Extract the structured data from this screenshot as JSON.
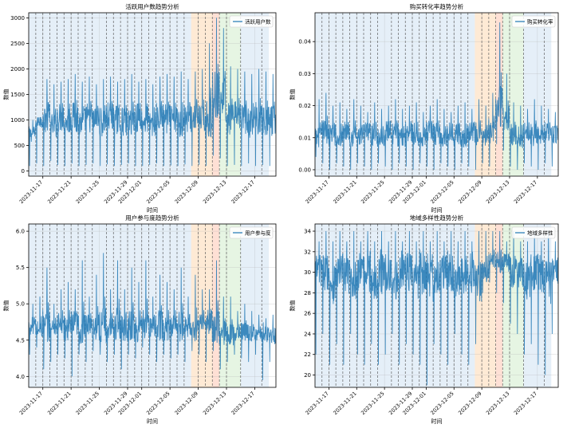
{
  "chart_data": [
    {
      "type": "line",
      "title": "活跃用户数趋势分析",
      "xlabel": "时间",
      "ylabel": "数值",
      "legend": "top-right",
      "grid": true,
      "x_range": [
        "2023-11-15",
        "2023-12-20"
      ],
      "ylim": [
        -100,
        3100
      ],
      "yticks": [
        0,
        500,
        1000,
        1500,
        2000,
        2500,
        3000
      ],
      "xticks": [
        "2023-11-17",
        "2023-11-21",
        "2023-11-25",
        "2023-11-29",
        "2023-12-01",
        "2023-12-05",
        "2023-12-09",
        "2023-12-13",
        "2023-12-17"
      ],
      "series": [
        {
          "name": "活跃用户数",
          "color": "#1f77b4",
          "x": [
            "2023-11-15",
            "2023-11-16",
            "2023-11-17",
            "2023-11-18",
            "2023-11-19",
            "2023-11-20",
            "2023-11-21",
            "2023-11-22",
            "2023-11-23",
            "2023-11-24",
            "2023-11-25",
            "2023-11-26",
            "2023-11-27",
            "2023-11-28",
            "2023-11-29",
            "2023-11-30",
            "2023-12-01",
            "2023-12-02",
            "2023-12-03",
            "2023-12-04",
            "2023-12-05",
            "2023-12-06",
            "2023-12-07",
            "2023-12-08",
            "2023-12-09",
            "2023-12-10",
            "2023-12-11",
            "2023-12-12",
            "2023-12-13",
            "2023-12-14",
            "2023-12-15",
            "2023-12-16",
            "2023-12-17",
            "2023-12-18",
            "2023-12-19"
          ],
          "values": [
            720,
            1000,
            1050,
            900,
            1050,
            1000,
            1050,
            950,
            1050,
            1000,
            950,
            1050,
            1000,
            950,
            1000,
            1050,
            1000,
            950,
            1050,
            1000,
            1000,
            950,
            1050,
            1050,
            1000,
            1050,
            1500,
            1400,
            1000,
            1050,
            1000,
            950,
            1050,
            1000,
            1000
          ],
          "daily_min": [
            100,
            150,
            100,
            200,
            120,
            100,
            150,
            100,
            120,
            150,
            100,
            130,
            100,
            120,
            150,
            100,
            100,
            120,
            150,
            100,
            110,
            100,
            130,
            100,
            120,
            100,
            300,
            250,
            100,
            120,
            100,
            150,
            100,
            120,
            100
          ],
          "daily_max": [
            1000,
            1050,
            1800,
            1700,
            1750,
            1800,
            1900,
            1750,
            1850,
            1700,
            1800,
            1850,
            1750,
            1800,
            1900,
            1750,
            1800,
            1700,
            1850,
            1900,
            1850,
            1950,
            1800,
            1950,
            2000,
            2500,
            3000,
            2800,
            2050,
            2000,
            1950,
            1900,
            2000,
            1950,
            1900
          ]
        }
      ],
      "events": [
        "2023-11-16",
        "2023-11-17",
        "2023-11-18",
        "2023-11-19",
        "2023-11-20",
        "2023-11-21",
        "2023-11-22",
        "2023-11-23",
        "2023-11-24",
        "2023-11-26",
        "2023-11-27",
        "2023-11-28",
        "2023-11-29",
        "2023-11-30",
        "2023-12-01",
        "2023-12-02",
        "2023-12-03",
        "2023-12-04",
        "2023-12-05",
        "2023-12-06",
        "2023-12-07",
        "2023-12-09",
        "2023-12-10",
        "2023-12-11",
        "2023-12-12",
        "2023-12-13",
        "2023-12-15",
        "2023-12-18"
      ],
      "spans": [
        {
          "start": "2023-11-15",
          "end": "2023-12-08",
          "color": "#c6dbef"
        },
        {
          "start": "2023-12-08",
          "end": "2023-12-11",
          "color": "#fdd0a2"
        },
        {
          "start": "2023-12-11",
          "end": "2023-12-12",
          "color": "#fcbba1"
        },
        {
          "start": "2023-12-12",
          "end": "2023-12-15",
          "color": "#c7e9c0"
        },
        {
          "start": "2023-12-15",
          "end": "2023-12-19",
          "color": "#c6dbef"
        }
      ]
    },
    {
      "type": "line",
      "title": "购买转化率趋势分析",
      "xlabel": "时间",
      "ylabel": "数值",
      "legend": "top-right",
      "grid": true,
      "x_range": [
        "2023-11-15",
        "2023-12-20"
      ],
      "ylim": [
        -0.002,
        0.049
      ],
      "yticks": [
        0.0,
        0.01,
        0.02,
        0.03,
        0.04
      ],
      "xticks": [
        "2023-11-17",
        "2023-11-21",
        "2023-11-25",
        "2023-11-29",
        "2023-12-01",
        "2023-12-05",
        "2023-12-09",
        "2023-12-13",
        "2023-12-17"
      ],
      "series": [
        {
          "name": "购买转化率",
          "color": "#1f77b4",
          "x": [
            "2023-11-15",
            "2023-11-16",
            "2023-11-17",
            "2023-11-18",
            "2023-11-19",
            "2023-11-20",
            "2023-11-21",
            "2023-11-22",
            "2023-11-23",
            "2023-11-24",
            "2023-11-25",
            "2023-11-26",
            "2023-11-27",
            "2023-11-28",
            "2023-11-29",
            "2023-11-30",
            "2023-12-01",
            "2023-12-02",
            "2023-12-03",
            "2023-12-04",
            "2023-12-05",
            "2023-12-06",
            "2023-12-07",
            "2023-12-08",
            "2023-12-09",
            "2023-12-10",
            "2023-12-11",
            "2023-12-12",
            "2023-12-13",
            "2023-12-14",
            "2023-12-15",
            "2023-12-16",
            "2023-12-17",
            "2023-12-18",
            "2023-12-19"
          ],
          "values": [
            0.01,
            0.012,
            0.011,
            0.01,
            0.012,
            0.011,
            0.01,
            0.012,
            0.011,
            0.01,
            0.012,
            0.011,
            0.01,
            0.012,
            0.011,
            0.01,
            0.012,
            0.011,
            0.01,
            0.012,
            0.011,
            0.01,
            0.012,
            0.011,
            0.01,
            0.012,
            0.02,
            0.016,
            0.011,
            0.01,
            0.012,
            0.011,
            0.01,
            0.012,
            0.011
          ],
          "daily_min": [
            0.004,
            0.002,
            0.0,
            0.002,
            0.001,
            0.0,
            0.002,
            0.001,
            0.0,
            0.002,
            0.001,
            0.0,
            0.002,
            0.001,
            0.0,
            0.002,
            0.001,
            0.0,
            0.002,
            0.001,
            0.0,
            0.002,
            0.001,
            0.0,
            0.002,
            0.001,
            0.008,
            0.006,
            0.001,
            0.0,
            0.002,
            0.001,
            0.0,
            0.002,
            0.001
          ],
          "daily_max": [
            0.022,
            0.024,
            0.02,
            0.021,
            0.019,
            0.022,
            0.02,
            0.018,
            0.021,
            0.019,
            0.02,
            0.022,
            0.019,
            0.02,
            0.021,
            0.018,
            0.02,
            0.022,
            0.019,
            0.018,
            0.02,
            0.021,
            0.019,
            0.022,
            0.02,
            0.024,
            0.046,
            0.03,
            0.021,
            0.02,
            0.019,
            0.022,
            0.02,
            0.019,
            0.018
          ]
        }
      ],
      "events": [
        "2023-11-16",
        "2023-11-17",
        "2023-11-18",
        "2023-11-19",
        "2023-11-20",
        "2023-11-21",
        "2023-11-22",
        "2023-11-23",
        "2023-11-24",
        "2023-11-26",
        "2023-11-27",
        "2023-11-28",
        "2023-11-29",
        "2023-11-30",
        "2023-12-01",
        "2023-12-02",
        "2023-12-03",
        "2023-12-04",
        "2023-12-05",
        "2023-12-06",
        "2023-12-07",
        "2023-12-09",
        "2023-12-10",
        "2023-12-11",
        "2023-12-12",
        "2023-12-13",
        "2023-12-15",
        "2023-12-18"
      ],
      "spans": [
        {
          "start": "2023-11-15",
          "end": "2023-12-08",
          "color": "#c6dbef"
        },
        {
          "start": "2023-12-08",
          "end": "2023-12-11",
          "color": "#fdd0a2"
        },
        {
          "start": "2023-12-11",
          "end": "2023-12-12",
          "color": "#fcbba1"
        },
        {
          "start": "2023-12-12",
          "end": "2023-12-15",
          "color": "#c7e9c0"
        },
        {
          "start": "2023-12-15",
          "end": "2023-12-19",
          "color": "#c6dbef"
        }
      ]
    },
    {
      "type": "line",
      "title": "用户参与度趋势分析",
      "xlabel": "时间",
      "ylabel": "数值",
      "legend": "top-right",
      "grid": true,
      "x_range": [
        "2023-11-15",
        "2023-12-20"
      ],
      "ylim": [
        3.85,
        6.1
      ],
      "yticks": [
        4.0,
        4.5,
        5.0,
        5.5,
        6.0
      ],
      "xticks": [
        "2023-11-17",
        "2023-11-21",
        "2023-11-25",
        "2023-11-29",
        "2023-12-01",
        "2023-12-05",
        "2023-12-09",
        "2023-12-13",
        "2023-12-17"
      ],
      "series": [
        {
          "name": "用户参与度",
          "color": "#1f77b4",
          "x": [
            "2023-11-15",
            "2023-11-16",
            "2023-11-17",
            "2023-11-18",
            "2023-11-19",
            "2023-11-20",
            "2023-11-21",
            "2023-11-22",
            "2023-11-23",
            "2023-11-24",
            "2023-11-25",
            "2023-11-26",
            "2023-11-27",
            "2023-11-28",
            "2023-11-29",
            "2023-11-30",
            "2023-12-01",
            "2023-12-02",
            "2023-12-03",
            "2023-12-04",
            "2023-12-05",
            "2023-12-06",
            "2023-12-07",
            "2023-12-08",
            "2023-12-09",
            "2023-12-10",
            "2023-12-11",
            "2023-12-12",
            "2023-12-13",
            "2023-12-14",
            "2023-12-15",
            "2023-12-16",
            "2023-12-17",
            "2023-12-18",
            "2023-12-19"
          ],
          "values": [
            4.7,
            4.65,
            4.7,
            4.68,
            4.72,
            4.66,
            4.7,
            4.65,
            4.72,
            4.68,
            4.7,
            4.66,
            4.72,
            4.68,
            4.7,
            4.65,
            4.72,
            4.68,
            4.7,
            4.66,
            4.72,
            4.68,
            4.7,
            4.65,
            4.72,
            4.75,
            4.68,
            4.6,
            4.58,
            4.6,
            4.62,
            4.6,
            4.58,
            4.6,
            4.55
          ],
          "daily_min": [
            4.3,
            4.4,
            4.1,
            4.2,
            4.3,
            4.25,
            4.0,
            4.3,
            4.2,
            4.35,
            4.3,
            4.2,
            4.3,
            4.1,
            4.3,
            4.25,
            4.4,
            4.3,
            4.2,
            4.3,
            4.25,
            4.3,
            4.2,
            4.35,
            4.3,
            4.2,
            4.35,
            4.1,
            4.2,
            4.3,
            4.25,
            4.2,
            4.3,
            3.95,
            4.2
          ],
          "daily_max": [
            5.0,
            5.1,
            5.5,
            5.0,
            5.2,
            5.3,
            5.2,
            5.6,
            5.1,
            5.4,
            5.7,
            5.2,
            5.6,
            5.2,
            5.5,
            5.3,
            5.6,
            5.1,
            5.4,
            5.3,
            5.2,
            5.5,
            5.1,
            5.4,
            5.2,
            5.2,
            5.6,
            5.1,
            5.1,
            4.9,
            5.0,
            4.9,
            4.85,
            4.8,
            4.85
          ]
        }
      ],
      "events": [
        "2023-11-16",
        "2023-11-17",
        "2023-11-18",
        "2023-11-19",
        "2023-11-20",
        "2023-11-21",
        "2023-11-22",
        "2023-11-23",
        "2023-11-24",
        "2023-11-26",
        "2023-11-27",
        "2023-11-28",
        "2023-11-29",
        "2023-11-30",
        "2023-12-01",
        "2023-12-02",
        "2023-12-03",
        "2023-12-04",
        "2023-12-05",
        "2023-12-06",
        "2023-12-07",
        "2023-12-09",
        "2023-12-10",
        "2023-12-11",
        "2023-12-12",
        "2023-12-13",
        "2023-12-15",
        "2023-12-18"
      ],
      "spans": [
        {
          "start": "2023-11-15",
          "end": "2023-12-08",
          "color": "#c6dbef"
        },
        {
          "start": "2023-12-08",
          "end": "2023-12-11",
          "color": "#fdd0a2"
        },
        {
          "start": "2023-12-11",
          "end": "2023-12-12",
          "color": "#fcbba1"
        },
        {
          "start": "2023-12-12",
          "end": "2023-12-15",
          "color": "#c7e9c0"
        },
        {
          "start": "2023-12-15",
          "end": "2023-12-19",
          "color": "#c6dbef"
        }
      ]
    },
    {
      "type": "line",
      "title": "地域多样性趋势分析",
      "xlabel": "时间",
      "ylabel": "数值",
      "legend": "top-right",
      "grid": true,
      "x_range": [
        "2023-11-15",
        "2023-12-20"
      ],
      "ylim": [
        18.8,
        34.7
      ],
      "yticks": [
        20,
        22,
        24,
        26,
        28,
        30,
        32,
        34
      ],
      "xticks": [
        "2023-11-17",
        "2023-11-21",
        "2023-11-25",
        "2023-11-29",
        "2023-12-01",
        "2023-12-05",
        "2023-12-09",
        "2023-12-13",
        "2023-12-17"
      ],
      "series": [
        {
          "name": "地域多样性",
          "color": "#1f77b4",
          "x": [
            "2023-11-15",
            "2023-11-16",
            "2023-11-17",
            "2023-11-18",
            "2023-11-19",
            "2023-11-20",
            "2023-11-21",
            "2023-11-22",
            "2023-11-23",
            "2023-11-24",
            "2023-11-25",
            "2023-11-26",
            "2023-11-27",
            "2023-11-28",
            "2023-11-29",
            "2023-11-30",
            "2023-12-01",
            "2023-12-02",
            "2023-12-03",
            "2023-12-04",
            "2023-12-05",
            "2023-12-06",
            "2023-12-07",
            "2023-12-08",
            "2023-12-09",
            "2023-12-10",
            "2023-12-11",
            "2023-12-12",
            "2023-12-13",
            "2023-12-14",
            "2023-12-15",
            "2023-12-16",
            "2023-12-17",
            "2023-12-18",
            "2023-12-19"
          ],
          "values": [
            30,
            30,
            29,
            30,
            30,
            29,
            30,
            30,
            29,
            30,
            30,
            29,
            30,
            30,
            29,
            30,
            30,
            29,
            30,
            30,
            29,
            30,
            30,
            29,
            30,
            31,
            31,
            31,
            30,
            30,
            29,
            30,
            30,
            29,
            30
          ],
          "daily_min": [
            22,
            24,
            21,
            23,
            21,
            24,
            22,
            21,
            23,
            21,
            22,
            24,
            21,
            23,
            22,
            21,
            19,
            23,
            22,
            21,
            24,
            22,
            21,
            23,
            28,
            29,
            28,
            27,
            25,
            24,
            22,
            23,
            21,
            20,
            24
          ],
          "daily_max": [
            33,
            34,
            33,
            34,
            33,
            34,
            33,
            34,
            33,
            34,
            33,
            34,
            33,
            34,
            33,
            34,
            33,
            34,
            33,
            34,
            33,
            34,
            33,
            34,
            34,
            34,
            34,
            33,
            34,
            33,
            33,
            34,
            33,
            34,
            33
          ]
        }
      ],
      "events": [
        "2023-11-16",
        "2023-11-17",
        "2023-11-18",
        "2023-11-19",
        "2023-11-20",
        "2023-11-21",
        "2023-11-22",
        "2023-11-23",
        "2023-11-24",
        "2023-11-26",
        "2023-11-27",
        "2023-11-28",
        "2023-11-29",
        "2023-11-30",
        "2023-12-01",
        "2023-12-02",
        "2023-12-03",
        "2023-12-04",
        "2023-12-05",
        "2023-12-06",
        "2023-12-07",
        "2023-12-09",
        "2023-12-10",
        "2023-12-11",
        "2023-12-12",
        "2023-12-13",
        "2023-12-15",
        "2023-12-18"
      ],
      "spans": [
        {
          "start": "2023-11-15",
          "end": "2023-12-08",
          "color": "#c6dbef"
        },
        {
          "start": "2023-12-08",
          "end": "2023-12-11",
          "color": "#fdd0a2"
        },
        {
          "start": "2023-12-11",
          "end": "2023-12-12",
          "color": "#fcbba1"
        },
        {
          "start": "2023-12-12",
          "end": "2023-12-15",
          "color": "#c7e9c0"
        },
        {
          "start": "2023-12-15",
          "end": "2023-12-19",
          "color": "#c6dbef"
        }
      ]
    }
  ]
}
